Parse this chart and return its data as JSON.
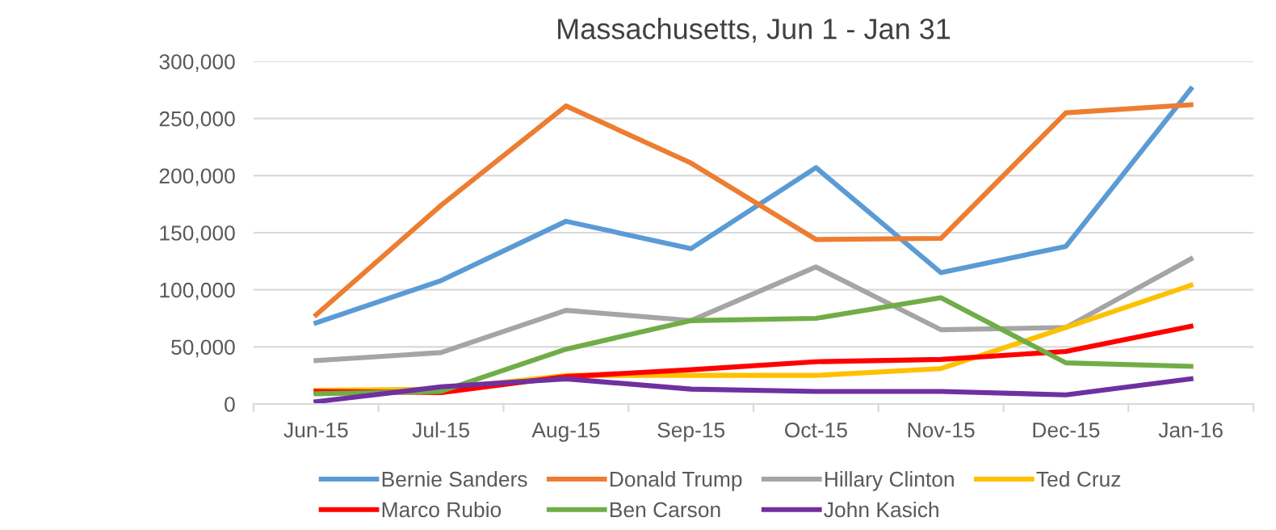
{
  "chart_data": {
    "type": "line",
    "title": "Massachusetts, Jun 1 - Jan 31",
    "categories": [
      "Jun-15",
      "Jul-15",
      "Aug-15",
      "Sep-15",
      "Oct-15",
      "Nov-15",
      "Dec-15",
      "Jan-16"
    ],
    "series": [
      {
        "name": "Bernie Sanders",
        "color": "#5b9bd5",
        "values": [
          71000,
          108000,
          160000,
          136000,
          207000,
          115000,
          138000,
          276000
        ]
      },
      {
        "name": "Donald Trump",
        "color": "#ed7d31",
        "values": [
          78000,
          174000,
          261000,
          211000,
          144000,
          145000,
          255000,
          262000
        ]
      },
      {
        "name": "Hillary Clinton",
        "color": "#a5a5a5",
        "values": [
          38000,
          45000,
          82000,
          73000,
          120000,
          65000,
          67000,
          127000
        ]
      },
      {
        "name": "Ted Cruz",
        "color": "#ffc000",
        "values": [
          12000,
          13000,
          25000,
          25000,
          25000,
          31000,
          67000,
          104000
        ]
      },
      {
        "name": "Marco Rubio",
        "color": "#ff0000",
        "values": [
          11000,
          10000,
          24000,
          30000,
          37000,
          39000,
          46000,
          68000
        ]
      },
      {
        "name": "Ben Carson",
        "color": "#70ad47",
        "values": [
          9000,
          11000,
          48000,
          73000,
          75000,
          93000,
          36000,
          33000
        ]
      },
      {
        "name": "John Kasich",
        "color": "#7030a0",
        "values": [
          2000,
          15000,
          22000,
          13000,
          11000,
          11000,
          8000,
          22000
        ]
      }
    ],
    "ylim": [
      0,
      300000
    ],
    "yticks": [
      {
        "value": 0,
        "label": "0"
      },
      {
        "value": 50000,
        "label": "50,000"
      },
      {
        "value": 100000,
        "label": "100,000"
      },
      {
        "value": 150000,
        "label": "150,000"
      },
      {
        "value": 200000,
        "label": "200,000"
      },
      {
        "value": 250000,
        "label": "250,000"
      },
      {
        "value": 300000,
        "label": "300,000"
      }
    ],
    "grid": "y",
    "legend": "bottom",
    "marker": "none",
    "line_style": "solid"
  }
}
